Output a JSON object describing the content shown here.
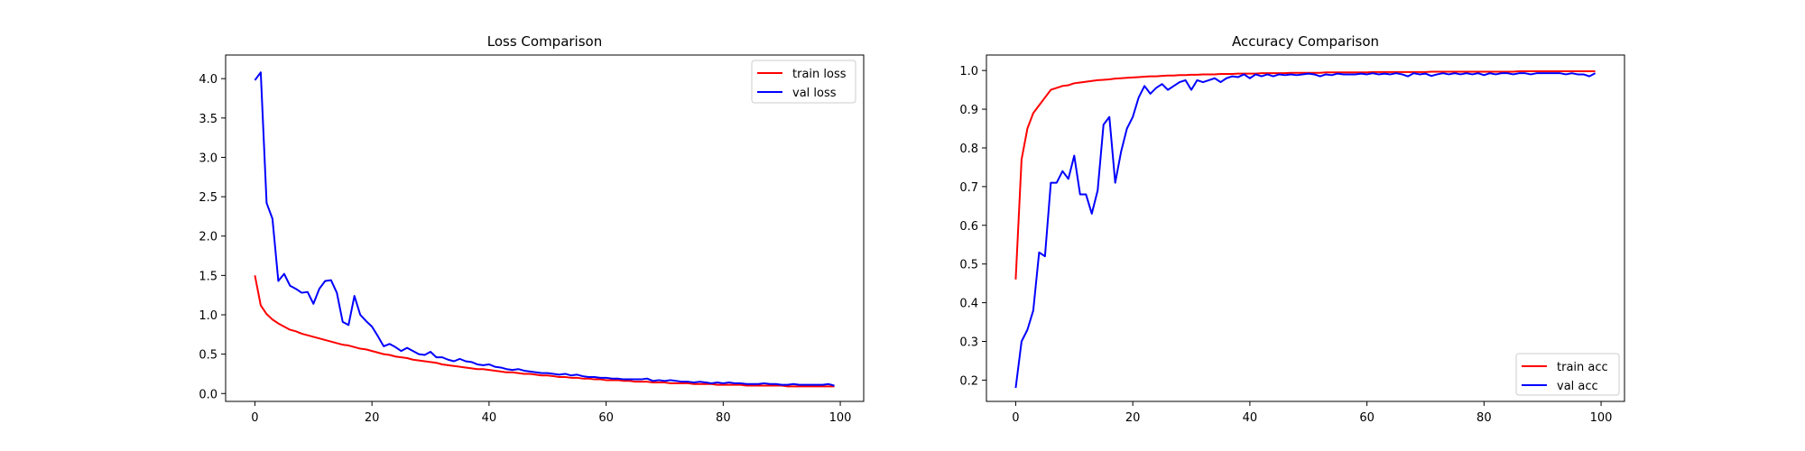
{
  "chart_data": [
    {
      "type": "line",
      "title": "Loss Comparison",
      "xlabel": "",
      "ylabel": "",
      "xlim": [
        -5,
        104
      ],
      "ylim": [
        -0.1,
        4.3
      ],
      "xticks": [
        0,
        20,
        40,
        60,
        80,
        100
      ],
      "yticks": [
        0.0,
        0.5,
        1.0,
        1.5,
        2.0,
        2.5,
        3.0,
        3.5,
        4.0
      ],
      "ytick_labels": [
        "0.0",
        "0.5",
        "1.0",
        "1.5",
        "2.0",
        "2.5",
        "3.0",
        "3.5",
        "4.0"
      ],
      "grid": false,
      "legend_position": "top-right",
      "series": [
        {
          "name": "train loss",
          "color": "#ff0000",
          "x": [
            0,
            1,
            2,
            3,
            4,
            5,
            6,
            7,
            8,
            9,
            10,
            11,
            12,
            13,
            14,
            15,
            16,
            17,
            18,
            19,
            20,
            21,
            22,
            23,
            24,
            25,
            26,
            27,
            28,
            29,
            30,
            31,
            32,
            33,
            34,
            35,
            36,
            37,
            38,
            39,
            40,
            41,
            42,
            43,
            44,
            45,
            46,
            47,
            48,
            49,
            50,
            51,
            52,
            53,
            54,
            55,
            56,
            57,
            58,
            59,
            60,
            61,
            62,
            63,
            64,
            65,
            66,
            67,
            68,
            69,
            70,
            71,
            72,
            73,
            74,
            75,
            76,
            77,
            78,
            79,
            80,
            81,
            82,
            83,
            84,
            85,
            86,
            87,
            88,
            89,
            90,
            91,
            92,
            93,
            94,
            95,
            96,
            97,
            98,
            99
          ],
          "values": [
            1.5,
            1.12,
            1.01,
            0.94,
            0.89,
            0.85,
            0.81,
            0.79,
            0.76,
            0.74,
            0.72,
            0.7,
            0.68,
            0.66,
            0.64,
            0.62,
            0.61,
            0.59,
            0.57,
            0.56,
            0.54,
            0.52,
            0.5,
            0.49,
            0.47,
            0.46,
            0.45,
            0.43,
            0.42,
            0.41,
            0.4,
            0.39,
            0.37,
            0.36,
            0.35,
            0.34,
            0.33,
            0.32,
            0.31,
            0.31,
            0.3,
            0.29,
            0.28,
            0.27,
            0.27,
            0.26,
            0.25,
            0.25,
            0.24,
            0.23,
            0.23,
            0.22,
            0.21,
            0.21,
            0.2,
            0.2,
            0.19,
            0.19,
            0.18,
            0.18,
            0.17,
            0.17,
            0.17,
            0.16,
            0.16,
            0.15,
            0.15,
            0.15,
            0.14,
            0.14,
            0.14,
            0.13,
            0.13,
            0.13,
            0.13,
            0.12,
            0.12,
            0.12,
            0.12,
            0.11,
            0.11,
            0.11,
            0.11,
            0.11,
            0.1,
            0.1,
            0.1,
            0.1,
            0.1,
            0.1,
            0.1,
            0.09,
            0.09,
            0.09,
            0.09,
            0.09,
            0.09,
            0.09,
            0.09,
            0.09
          ]
        },
        {
          "name": "val loss",
          "color": "#0000ff",
          "x": [
            0,
            1,
            2,
            3,
            4,
            5,
            6,
            7,
            8,
            9,
            10,
            11,
            12,
            13,
            14,
            15,
            16,
            17,
            18,
            19,
            20,
            21,
            22,
            23,
            24,
            25,
            26,
            27,
            28,
            29,
            30,
            31,
            32,
            33,
            34,
            35,
            36,
            37,
            38,
            39,
            40,
            41,
            42,
            43,
            44,
            45,
            46,
            47,
            48,
            49,
            50,
            51,
            52,
            53,
            54,
            55,
            56,
            57,
            58,
            59,
            60,
            61,
            62,
            63,
            64,
            65,
            66,
            67,
            68,
            69,
            70,
            71,
            72,
            73,
            74,
            75,
            76,
            77,
            78,
            79,
            80,
            81,
            82,
            83,
            84,
            85,
            86,
            87,
            88,
            89,
            90,
            91,
            92,
            93,
            94,
            95,
            96,
            97,
            98,
            99
          ],
          "values": [
            3.98,
            4.08,
            2.42,
            2.22,
            1.43,
            1.52,
            1.37,
            1.33,
            1.28,
            1.29,
            1.14,
            1.33,
            1.43,
            1.44,
            1.28,
            0.91,
            0.87,
            1.24,
            1.0,
            0.92,
            0.85,
            0.73,
            0.6,
            0.63,
            0.59,
            0.54,
            0.58,
            0.54,
            0.5,
            0.49,
            0.53,
            0.46,
            0.46,
            0.43,
            0.41,
            0.44,
            0.41,
            0.4,
            0.37,
            0.36,
            0.37,
            0.34,
            0.33,
            0.31,
            0.3,
            0.31,
            0.29,
            0.28,
            0.27,
            0.26,
            0.26,
            0.25,
            0.24,
            0.25,
            0.23,
            0.24,
            0.22,
            0.21,
            0.21,
            0.2,
            0.2,
            0.19,
            0.19,
            0.18,
            0.18,
            0.18,
            0.18,
            0.19,
            0.16,
            0.17,
            0.16,
            0.17,
            0.16,
            0.15,
            0.15,
            0.14,
            0.15,
            0.14,
            0.13,
            0.14,
            0.13,
            0.14,
            0.13,
            0.13,
            0.12,
            0.12,
            0.12,
            0.13,
            0.12,
            0.12,
            0.11,
            0.11,
            0.12,
            0.11,
            0.11,
            0.11,
            0.11,
            0.11,
            0.12,
            0.1
          ]
        }
      ]
    },
    {
      "type": "line",
      "title": "Accuracy Comparison",
      "xlabel": "",
      "ylabel": "",
      "xlim": [
        -5,
        104
      ],
      "ylim": [
        0.145,
        1.04
      ],
      "xticks": [
        0,
        20,
        40,
        60,
        80,
        100
      ],
      "yticks": [
        0.2,
        0.3,
        0.4,
        0.5,
        0.6,
        0.7,
        0.8,
        0.9,
        1.0
      ],
      "ytick_labels": [
        "0.2",
        "0.3",
        "0.4",
        "0.5",
        "0.6",
        "0.7",
        "0.8",
        "0.9",
        "1.0"
      ],
      "grid": false,
      "legend_position": "bottom-right",
      "series": [
        {
          "name": "train acc",
          "color": "#ff0000",
          "x": [
            0,
            1,
            2,
            3,
            4,
            5,
            6,
            7,
            8,
            9,
            10,
            11,
            12,
            13,
            14,
            15,
            16,
            17,
            18,
            19,
            20,
            21,
            22,
            23,
            24,
            25,
            26,
            27,
            28,
            29,
            30,
            31,
            32,
            33,
            34,
            35,
            36,
            37,
            38,
            39,
            40,
            41,
            42,
            43,
            44,
            45,
            46,
            47,
            48,
            49,
            50,
            51,
            52,
            53,
            54,
            55,
            56,
            57,
            58,
            59,
            60,
            61,
            62,
            63,
            64,
            65,
            66,
            67,
            68,
            69,
            70,
            71,
            72,
            73,
            74,
            75,
            76,
            77,
            78,
            79,
            80,
            81,
            82,
            83,
            84,
            85,
            86,
            87,
            88,
            89,
            90,
            91,
            92,
            93,
            94,
            95,
            96,
            97,
            98,
            99
          ],
          "values": [
            0.46,
            0.77,
            0.85,
            0.89,
            0.91,
            0.93,
            0.95,
            0.955,
            0.96,
            0.962,
            0.967,
            0.969,
            0.971,
            0.973,
            0.975,
            0.976,
            0.977,
            0.979,
            0.98,
            0.981,
            0.982,
            0.983,
            0.984,
            0.985,
            0.985,
            0.986,
            0.987,
            0.987,
            0.988,
            0.988,
            0.989,
            0.989,
            0.99,
            0.99,
            0.99,
            0.991,
            0.991,
            0.991,
            0.992,
            0.992,
            0.992,
            0.992,
            0.993,
            0.993,
            0.993,
            0.993,
            0.993,
            0.994,
            0.994,
            0.994,
            0.994,
            0.994,
            0.994,
            0.995,
            0.995,
            0.995,
            0.995,
            0.995,
            0.995,
            0.995,
            0.995,
            0.996,
            0.996,
            0.996,
            0.996,
            0.996,
            0.996,
            0.996,
            0.996,
            0.996,
            0.996,
            0.997,
            0.997,
            0.997,
            0.997,
            0.997,
            0.997,
            0.997,
            0.997,
            0.997,
            0.997,
            0.997,
            0.997,
            0.997,
            0.997,
            0.997,
            0.998,
            0.998,
            0.998,
            0.998,
            0.998,
            0.998,
            0.998,
            0.998,
            0.998,
            0.998,
            0.998,
            0.998,
            0.998,
            0.998
          ]
        },
        {
          "name": "val acc",
          "color": "#0000ff",
          "x": [
            0,
            1,
            2,
            3,
            4,
            5,
            6,
            7,
            8,
            9,
            10,
            11,
            12,
            13,
            14,
            15,
            16,
            17,
            18,
            19,
            20,
            21,
            22,
            23,
            24,
            25,
            26,
            27,
            28,
            29,
            30,
            31,
            32,
            33,
            34,
            35,
            36,
            37,
            38,
            39,
            40,
            41,
            42,
            43,
            44,
            45,
            46,
            47,
            48,
            49,
            50,
            51,
            52,
            53,
            54,
            55,
            56,
            57,
            58,
            59,
            60,
            61,
            62,
            63,
            64,
            65,
            66,
            67,
            68,
            69,
            70,
            71,
            72,
            73,
            74,
            75,
            76,
            77,
            78,
            79,
            80,
            81,
            82,
            83,
            84,
            85,
            86,
            87,
            88,
            89,
            90,
            91,
            92,
            93,
            94,
            95,
            96,
            97,
            98,
            99
          ],
          "values": [
            0.18,
            0.3,
            0.33,
            0.38,
            0.53,
            0.52,
            0.71,
            0.71,
            0.74,
            0.72,
            0.78,
            0.68,
            0.68,
            0.63,
            0.69,
            0.86,
            0.88,
            0.71,
            0.79,
            0.85,
            0.88,
            0.93,
            0.96,
            0.94,
            0.955,
            0.965,
            0.95,
            0.96,
            0.97,
            0.975,
            0.95,
            0.975,
            0.97,
            0.975,
            0.98,
            0.97,
            0.98,
            0.985,
            0.983,
            0.99,
            0.98,
            0.99,
            0.985,
            0.99,
            0.985,
            0.99,
            0.988,
            0.99,
            0.988,
            0.99,
            0.992,
            0.99,
            0.985,
            0.99,
            0.988,
            0.992,
            0.99,
            0.99,
            0.99,
            0.992,
            0.99,
            0.993,
            0.99,
            0.992,
            0.99,
            0.993,
            0.99,
            0.985,
            0.993,
            0.99,
            0.992,
            0.986,
            0.99,
            0.993,
            0.99,
            0.993,
            0.99,
            0.993,
            0.99,
            0.993,
            0.988,
            0.993,
            0.99,
            0.993,
            0.993,
            0.99,
            0.993,
            0.993,
            0.99,
            0.993,
            0.993,
            0.993,
            0.993,
            0.993,
            0.99,
            0.993,
            0.99,
            0.99,
            0.985,
            0.993
          ]
        }
      ]
    }
  ]
}
